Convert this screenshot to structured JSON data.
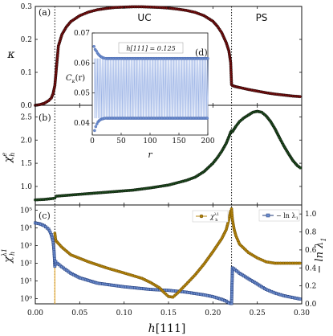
{
  "figure": {
    "regions": [
      "UC",
      "PS"
    ],
    "xlabel_main": "h",
    "xlabel_bracket": "[111]",
    "xticks": [
      "0.00",
      "0.05",
      "0.10",
      "0.15",
      "0.20",
      "0.25",
      "0.30"
    ],
    "vlines_x": [
      0.022,
      0.221
    ]
  },
  "chart_data": [
    {
      "panel": "(a)",
      "type": "line",
      "ylabel": "κ",
      "xlim": [
        0,
        0.3
      ],
      "ylim": [
        0,
        0.3
      ],
      "yticks": [
        "0.0",
        "0.1",
        "0.2",
        "0.3"
      ],
      "series": [
        {
          "color": "#7a0f0f",
          "x": [
            0.0,
            0.005,
            0.01,
            0.015,
            0.018,
            0.02,
            0.022,
            0.024,
            0.026,
            0.03,
            0.035,
            0.04,
            0.05,
            0.06,
            0.07,
            0.08,
            0.09,
            0.1,
            0.11,
            0.12,
            0.13,
            0.14,
            0.15,
            0.16,
            0.17,
            0.18,
            0.19,
            0.2,
            0.205,
            0.21,
            0.215,
            0.218,
            0.22,
            0.221,
            0.222,
            0.225,
            0.23,
            0.24,
            0.25,
            0.26,
            0.27,
            0.28,
            0.29,
            0.3
          ],
          "y": [
            0.0,
            0.002,
            0.006,
            0.014,
            0.022,
            0.035,
            0.06,
            0.12,
            0.18,
            0.215,
            0.238,
            0.254,
            0.272,
            0.283,
            0.29,
            0.294,
            0.297,
            0.298,
            0.299,
            0.299,
            0.298,
            0.297,
            0.295,
            0.292,
            0.288,
            0.282,
            0.272,
            0.255,
            0.24,
            0.22,
            0.19,
            0.165,
            0.13,
            0.063,
            0.06,
            0.057,
            0.054,
            0.048,
            0.043,
            0.038,
            0.034,
            0.031,
            0.028,
            0.026
          ]
        }
      ]
    },
    {
      "panel": "(b)",
      "type": "line",
      "ylabel": "χ",
      "ylabel_sup": "e",
      "ylabel_sub": "h",
      "xlim": [
        0,
        0.3
      ],
      "ylim": [
        0.6,
        2.75
      ],
      "yticks": [
        "1.0",
        "1.5",
        "2.0",
        "2.5"
      ],
      "series": [
        {
          "color": "#1f4d1f",
          "x": [
            0.0,
            0.01,
            0.02,
            0.022,
            0.024,
            0.03,
            0.05,
            0.07,
            0.09,
            0.11,
            0.13,
            0.15,
            0.17,
            0.18,
            0.19,
            0.2,
            0.205,
            0.21,
            0.215,
            0.218,
            0.22,
            0.221,
            0.222,
            0.226,
            0.23,
            0.235,
            0.24,
            0.245,
            0.25,
            0.255,
            0.26,
            0.265,
            0.27,
            0.275,
            0.28,
            0.285,
            0.29,
            0.295,
            0.3
          ],
          "y": [
            0.71,
            0.72,
            0.74,
            0.75,
            0.79,
            0.8,
            0.83,
            0.86,
            0.89,
            0.92,
            0.97,
            1.03,
            1.13,
            1.2,
            1.32,
            1.5,
            1.62,
            1.76,
            1.93,
            2.07,
            2.17,
            2.2,
            2.18,
            2.3,
            2.4,
            2.48,
            2.54,
            2.6,
            2.62,
            2.6,
            2.52,
            2.4,
            2.24,
            2.05,
            1.87,
            1.71,
            1.56,
            1.45,
            1.38
          ]
        }
      ]
    },
    {
      "panel": "(c)",
      "type": "line",
      "ylabel": "χ",
      "ylabel_sup": "λ1",
      "ylabel_sub": "h",
      "y2label": "− ln λ",
      "y2label_sub": "1",
      "xlim": [
        0,
        0.3
      ],
      "ylog": true,
      "ylim": [
        0.5,
        200000
      ],
      "yticks": [
        "10⁰",
        "10¹",
        "10²",
        "10³",
        "10⁴",
        "10⁵"
      ],
      "y2lim": [
        0,
        1.1
      ],
      "y2ticks": [
        "0.0",
        "0.2",
        "0.4",
        "0.6",
        "0.8",
        "1.0"
      ],
      "series": [
        {
          "legend": "χ",
          "legend_sup": "λ1",
          "legend_sub": "h",
          "axis": "left",
          "color": "#b7860b",
          "x": [
            0.022,
            0.023,
            0.025,
            0.03,
            0.04,
            0.06,
            0.08,
            0.1,
            0.12,
            0.13,
            0.14,
            0.145,
            0.15,
            0.155,
            0.16,
            0.17,
            0.18,
            0.19,
            0.2,
            0.21,
            0.215,
            0.218,
            0.22,
            0.221,
            0.222,
            0.224,
            0.226,
            0.23,
            0.24,
            0.25,
            0.26,
            0.27,
            0.28,
            0.29,
            0.3
          ],
          "y": [
            5000,
            2000,
            1500,
            800,
            300,
            120,
            55,
            28,
            14,
            8,
            4,
            2.2,
            1.3,
            1.2,
            2.0,
            6.5,
            22,
            90,
            450,
            2500,
            8000,
            30000,
            90000,
            120000,
            30000,
            8000,
            3500,
            1200,
            400,
            200,
            120,
            100,
            100,
            100,
            100
          ]
        },
        {
          "legend": "− ln λ",
          "legend_sub": "1",
          "axis": "right",
          "color": "#1f3a7a",
          "x": [
            0.0,
            0.005,
            0.01,
            0.015,
            0.018,
            0.02,
            0.021,
            0.022,
            0.023,
            0.025,
            0.03,
            0.04,
            0.05,
            0.07,
            0.1,
            0.13,
            0.15,
            0.17,
            0.19,
            0.2,
            0.21,
            0.215,
            0.218,
            0.22,
            0.221,
            0.222,
            0.225,
            0.23,
            0.24,
            0.25,
            0.26,
            0.27,
            0.28,
            0.29,
            0.3
          ],
          "y": [
            0.9,
            0.89,
            0.87,
            0.83,
            0.77,
            0.7,
            0.6,
            0.42,
            0.47,
            0.45,
            0.41,
            0.34,
            0.29,
            0.23,
            0.19,
            0.16,
            0.15,
            0.13,
            0.1,
            0.08,
            0.05,
            0.03,
            0.01,
            0.005,
            0.005,
            0.4,
            0.38,
            0.34,
            0.28,
            0.22,
            0.16,
            0.12,
            0.09,
            0.07,
            0.05
          ]
        }
      ]
    },
    {
      "panel": "(d)",
      "type": "scatter",
      "annotation": "h[111] = 0.125",
      "xlabel": "r",
      "ylabel": "C",
      "ylabel_sub": "κ",
      "ylabel_suffix": "(r)",
      "xlim": [
        0,
        200
      ],
      "ylim": [
        0.036,
        0.07
      ],
      "xticks": [
        "0",
        "50",
        "100",
        "150",
        "200"
      ],
      "yticks": [
        "0.04",
        "0.05",
        "0.06",
        "0.07"
      ],
      "series": [
        {
          "name": "upper",
          "color": "#3f5fa8",
          "x": [
            3,
            5,
            7,
            9,
            11,
            13,
            15,
            17,
            19,
            21,
            24
          ],
          "y": [
            0.0655,
            0.0645,
            0.064,
            0.0633,
            0.0628,
            0.0624,
            0.0621,
            0.0619,
            0.0617,
            0.0616,
            0.0615
          ],
          "plateau_from": 24,
          "plateau_to": 200,
          "plateau_value": 0.0615
        },
        {
          "name": "lower",
          "color": "#3f5fa8",
          "x": [
            4,
            6,
            8,
            10,
            12,
            14,
            16,
            18,
            20,
            22,
            25
          ],
          "y": [
            0.0375,
            0.0388,
            0.0397,
            0.0404,
            0.0408,
            0.0411,
            0.0413,
            0.0414,
            0.0415,
            0.0416,
            0.0416
          ],
          "plateau_from": 25,
          "plateau_to": 200,
          "plateau_value": 0.0416
        }
      ]
    }
  ]
}
